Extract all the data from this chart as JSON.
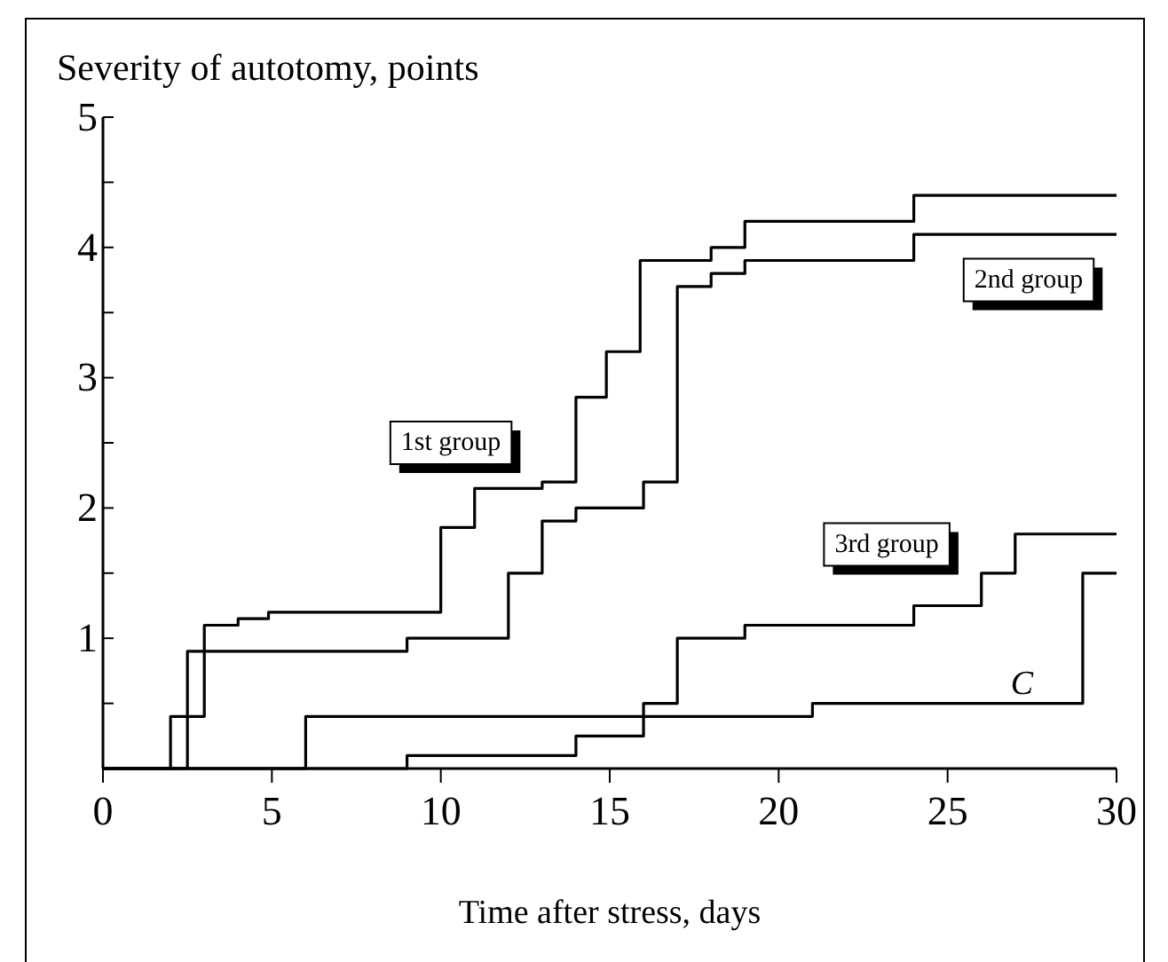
{
  "chart_data": {
    "type": "step",
    "ylabel": "Severity of autotomy, points",
    "xlabel": "Time after stress, days",
    "xlim": [
      0,
      30
    ],
    "xticks": [
      0,
      5,
      10,
      15,
      20,
      25,
      30
    ],
    "ylim": [
      0,
      5
    ],
    "yticks": [
      {
        "value": 0,
        "label": null
      },
      {
        "value": 0.5,
        "label": null
      },
      1,
      {
        "value": 1.5,
        "label": null
      },
      2,
      {
        "value": 2.5,
        "label": null
      },
      3,
      {
        "value": 3.5,
        "label": null
      },
      4,
      {
        "value": 4.5,
        "label": null
      },
      5
    ],
    "grid": false,
    "legend": false,
    "marker": "none",
    "line_style": "solid",
    "series": [
      {
        "name": "1st group",
        "color": "#000000",
        "x": [
          0,
          2,
          3,
          4,
          4.9,
          10,
          11,
          13,
          14,
          14.9,
          15.9,
          18,
          19,
          24,
          30
        ],
        "values": [
          0,
          0.4,
          1.1,
          1.15,
          1.2,
          1.85,
          2.15,
          2.2,
          2.85,
          3.2,
          3.9,
          4.0,
          4.2,
          4.4,
          4.4
        ]
      },
      {
        "name": "2nd group",
        "color": "#000000",
        "x": [
          0,
          2.5,
          9,
          12,
          13,
          14,
          16,
          17,
          18,
          19,
          24,
          30
        ],
        "values": [
          0,
          0.9,
          1.0,
          1.5,
          1.9,
          2.0,
          2.2,
          3.7,
          3.8,
          3.9,
          4.1,
          4.1
        ]
      },
      {
        "name": "3rd group",
        "color": "#000000",
        "x": [
          0,
          9,
          14,
          16,
          17,
          19,
          24,
          26,
          27,
          30
        ],
        "values": [
          0,
          0.1,
          0.25,
          0.5,
          1.0,
          1.1,
          1.25,
          1.5,
          1.8,
          1.8
        ]
      },
      {
        "name": "C",
        "color": "#000000",
        "x": [
          0,
          6,
          21,
          29,
          30
        ],
        "values": [
          0,
          0.4,
          0.5,
          1.5,
          1.5
        ]
      }
    ]
  }
}
